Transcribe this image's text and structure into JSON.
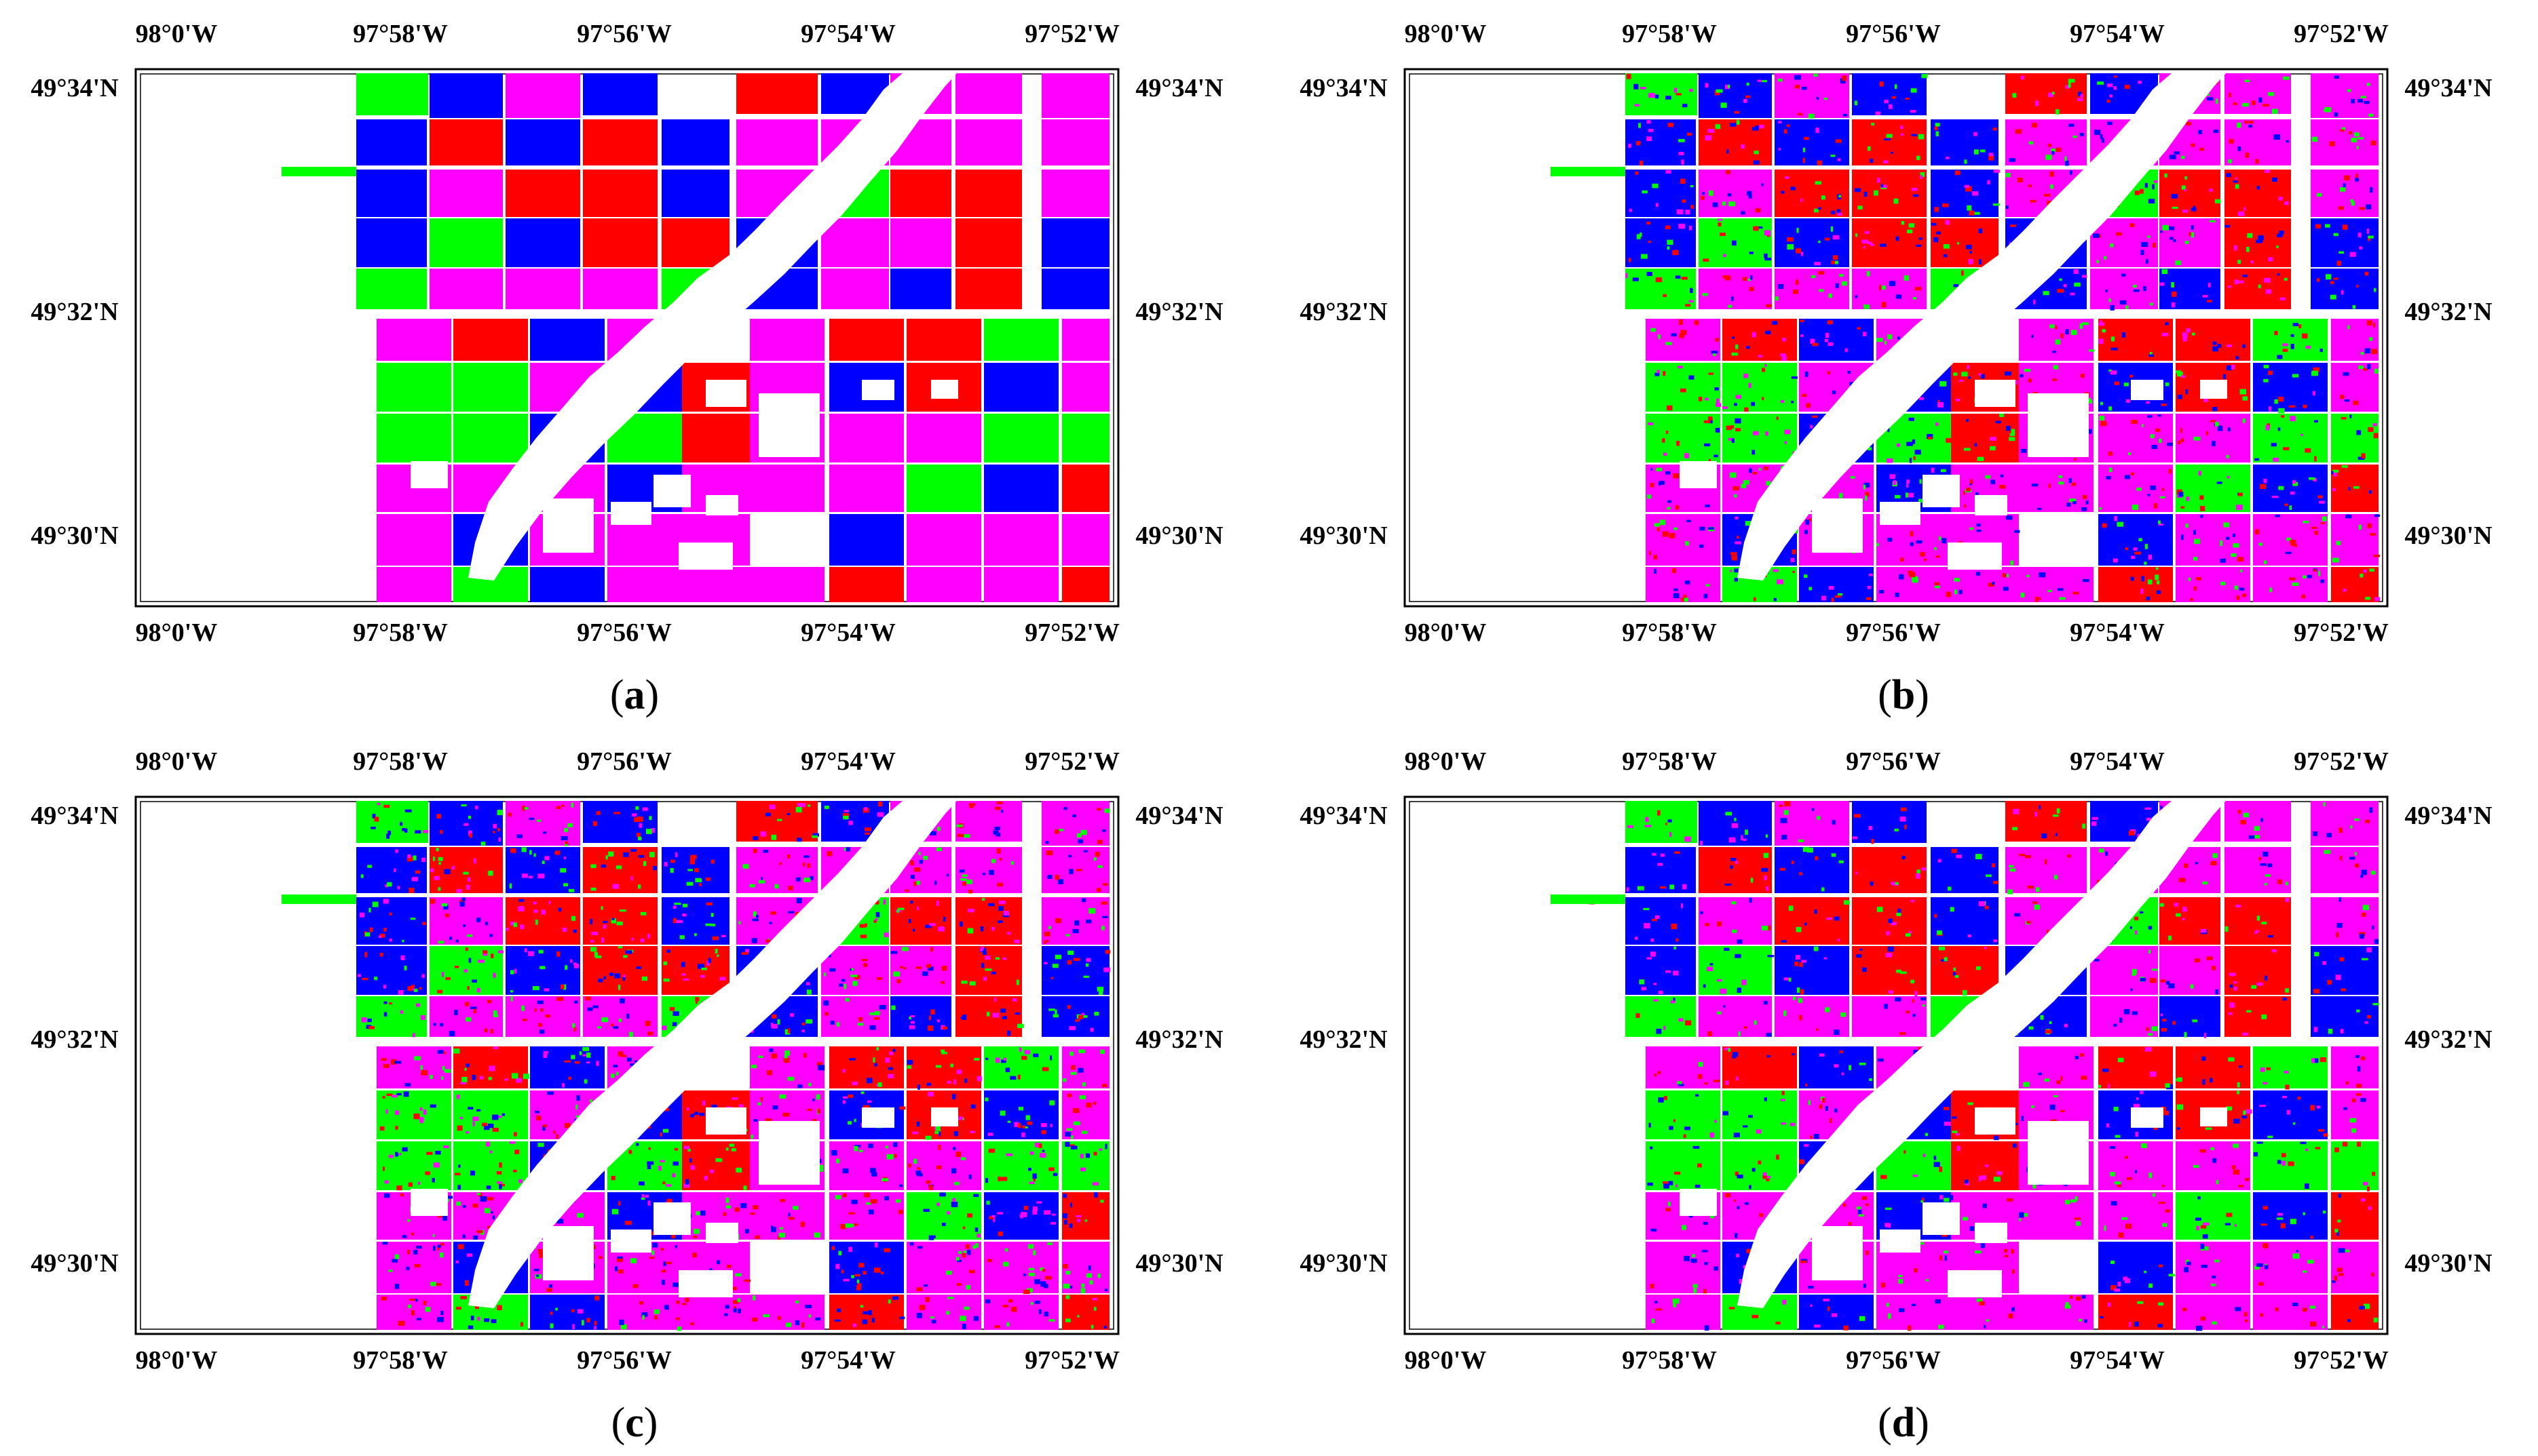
{
  "figure": {
    "colors": {
      "green": "#00ff00",
      "blue": "#0000ff",
      "red": "#ff0000",
      "magenta": "#ff00ff",
      "background": "#ffffff"
    },
    "top_lon_labels": [
      "98°0'W",
      "97°58'W",
      "97°56'W",
      "97°54'W",
      "97°52'W"
    ],
    "bottom_lon_labels": [
      "98°0'W",
      "97°58'W",
      "97°56'W",
      "97°54'W",
      "97°52'W"
    ],
    "lat_labels": [
      "49°34'N",
      "49°32'N",
      "49°30'N"
    ],
    "panels": [
      {
        "letter": "a",
        "noise": 0.0
      },
      {
        "letter": "b",
        "noise": 0.3
      },
      {
        "letter": "c",
        "noise": 0.36
      },
      {
        "letter": "d",
        "noise": 0.22
      }
    ]
  }
}
